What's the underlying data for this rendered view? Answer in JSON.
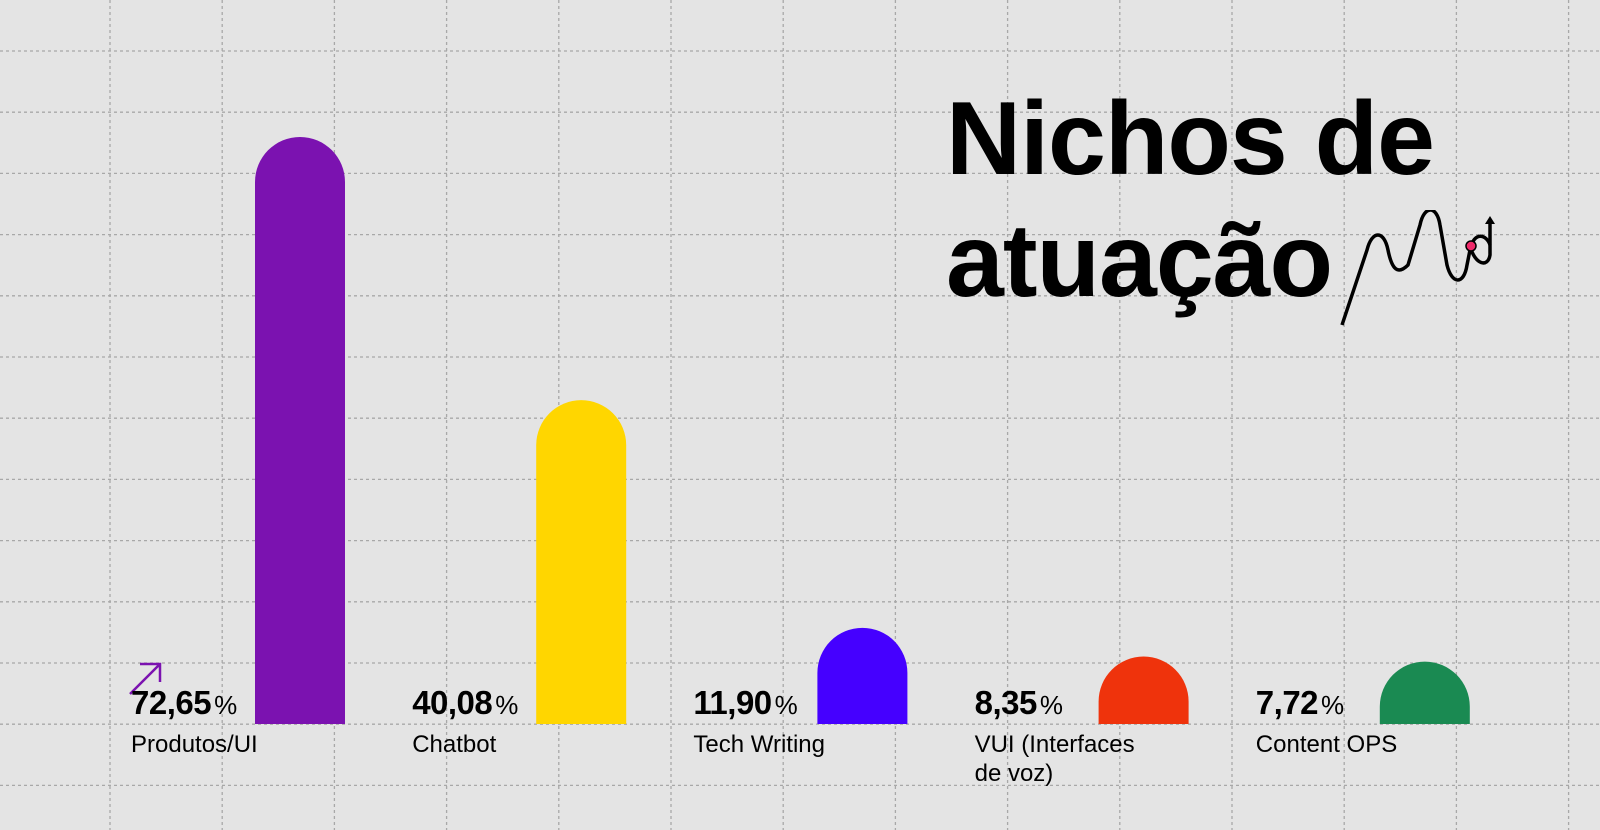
{
  "title_lines": [
    "Nichos de",
    "atuação"
  ],
  "chart_data": {
    "type": "bar",
    "title": "Nichos de atuação",
    "categories": [
      "Produtos/UI",
      "Chatbot",
      "Tech Writing",
      "VUI (Interfaces de voz)",
      "Content OPS"
    ],
    "values": [
      72.65,
      40.08,
      11.9,
      8.35,
      7.72
    ],
    "value_labels": [
      "72,65",
      "40,08",
      "11,90",
      "8,35",
      "7,72"
    ],
    "category_lines": [
      [
        "Produtos/UI"
      ],
      [
        "Chatbot"
      ],
      [
        "Tech Writing"
      ],
      [
        "VUI (Interfaces",
        "de voz)"
      ],
      [
        "Content OPS"
      ]
    ],
    "unit": "%",
    "colors": [
      "#7b12b0",
      "#ffd600",
      "#4500ff",
      "#ef330c",
      "#1a8a52"
    ],
    "ylim": [
      0,
      72.65
    ],
    "grid": true,
    "legend": "none"
  },
  "decorations": {
    "arrow_icon_color": "#7b12b0",
    "squiggle_dot_color": "#ef2a6a"
  }
}
